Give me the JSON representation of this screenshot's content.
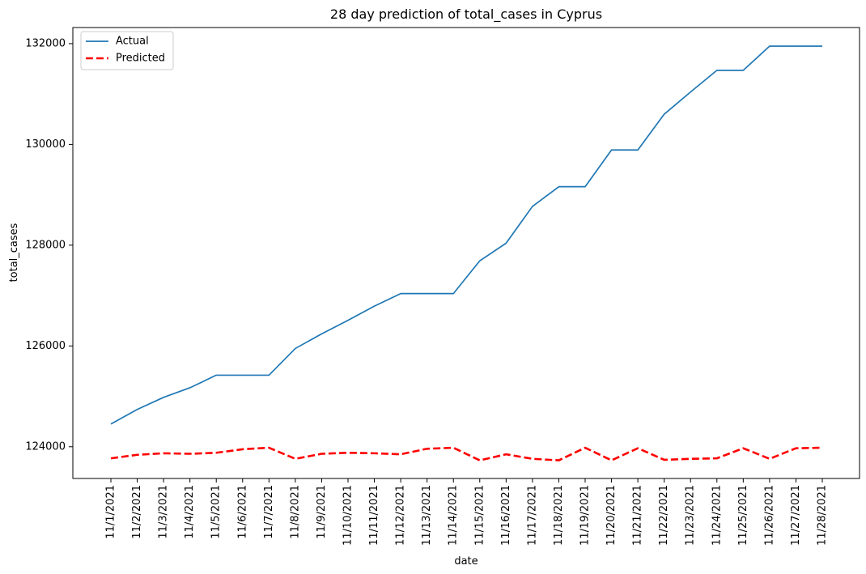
{
  "chart_data": {
    "type": "line",
    "title": "28 day prediction of total_cases in Cyprus",
    "xlabel": "date",
    "ylabel": "total_cases",
    "categories": [
      "11/1/2021",
      "11/2/2021",
      "11/3/2021",
      "11/4/2021",
      "11/5/2021",
      "11/6/2021",
      "11/7/2021",
      "11/8/2021",
      "11/9/2021",
      "11/10/2021",
      "11/11/2021",
      "11/12/2021",
      "11/13/2021",
      "11/14/2021",
      "11/15/2021",
      "11/16/2021",
      "11/17/2021",
      "11/18/2021",
      "11/19/2021",
      "11/20/2021",
      "11/21/2021",
      "11/22/2021",
      "11/23/2021",
      "11/24/2021",
      "11/25/2021",
      "11/26/2021",
      "11/27/2021",
      "11/28/2021"
    ],
    "ylim": [
      123370,
      132320
    ],
    "yticks": [
      124000,
      126000,
      128000,
      130000,
      132000
    ],
    "legend_position": "top-left",
    "grid": false,
    "series": [
      {
        "name": "Actual",
        "color": "#1f77b4",
        "style": "solid",
        "values": [
          124450,
          124740,
          124980,
          125170,
          125420,
          125420,
          125420,
          125950,
          126240,
          126510,
          126790,
          127040,
          127040,
          127040,
          127690,
          128040,
          128770,
          129160,
          129160,
          129890,
          129890,
          130600,
          131040,
          131470,
          131470,
          131950,
          131950,
          131950
        ]
      },
      {
        "name": "Predicted",
        "color": "#ff0000",
        "style": "dashed",
        "values": [
          123770,
          123840,
          123870,
          123860,
          123880,
          123950,
          123980,
          123760,
          123860,
          123880,
          123870,
          123850,
          123960,
          123980,
          123730,
          123850,
          123760,
          123730,
          123980,
          123730,
          123970,
          123740,
          123760,
          123770,
          123970,
          123760,
          123970,
          123980
        ]
      }
    ]
  }
}
